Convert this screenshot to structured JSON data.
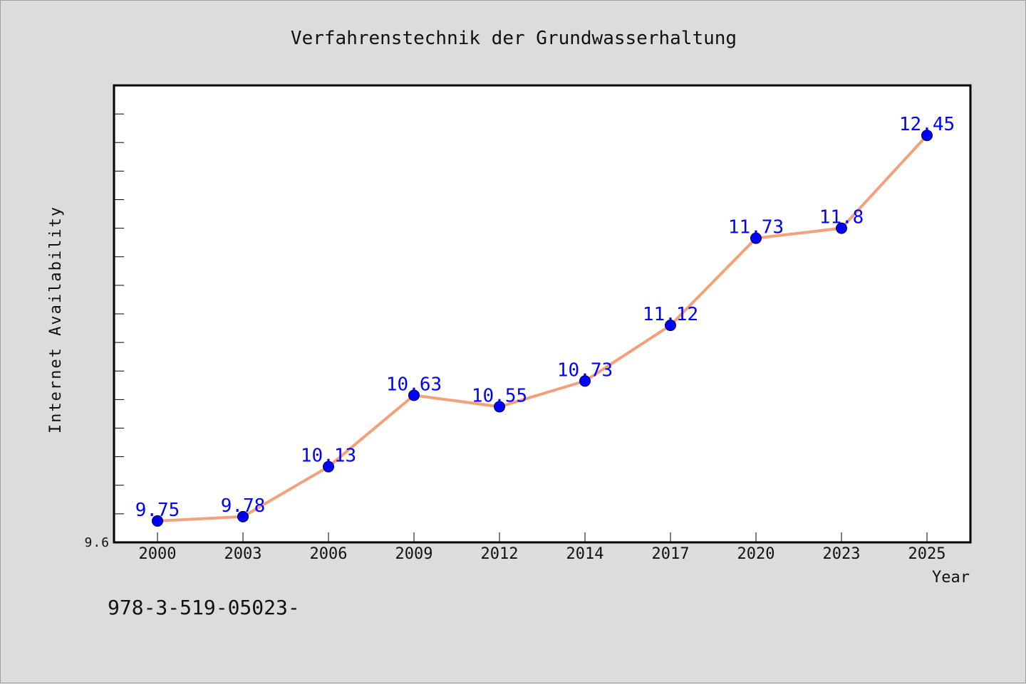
{
  "chart_data": {
    "type": "line",
    "title": "Verfahrenstechnik der Grundwasserhaltung",
    "xlabel": "Year",
    "ylabel": "Internet Availability",
    "categories": [
      "2000",
      "2003",
      "2006",
      "2009",
      "2012",
      "2014",
      "2017",
      "2020",
      "2023",
      "2025"
    ],
    "series": [
      {
        "values": [
          9.75,
          9.78,
          10.13,
          10.63,
          10.55,
          10.73,
          11.12,
          11.73,
          11.8,
          12.45
        ],
        "labels": [
          "9.75",
          "9.78",
          "10.13",
          "10.63",
          "10.55",
          "10.73",
          "11.12",
          "11.73",
          "11.8",
          "12.45"
        ],
        "line_color": "#f4a07a",
        "marker_color": "#0000ff"
      }
    ],
    "ylim": [
      9.6,
      12.8
    ],
    "y_tick_labels": [
      "9.6"
    ],
    "grid": false,
    "legend": "none"
  },
  "footer": {
    "isbn": "978-3-519-05023-"
  },
  "colors": {
    "background": "#dcdcdc",
    "plot_background": "#ffffff",
    "line": "#f4a07a",
    "marker": "#0000ff",
    "label": "#0000ff"
  }
}
